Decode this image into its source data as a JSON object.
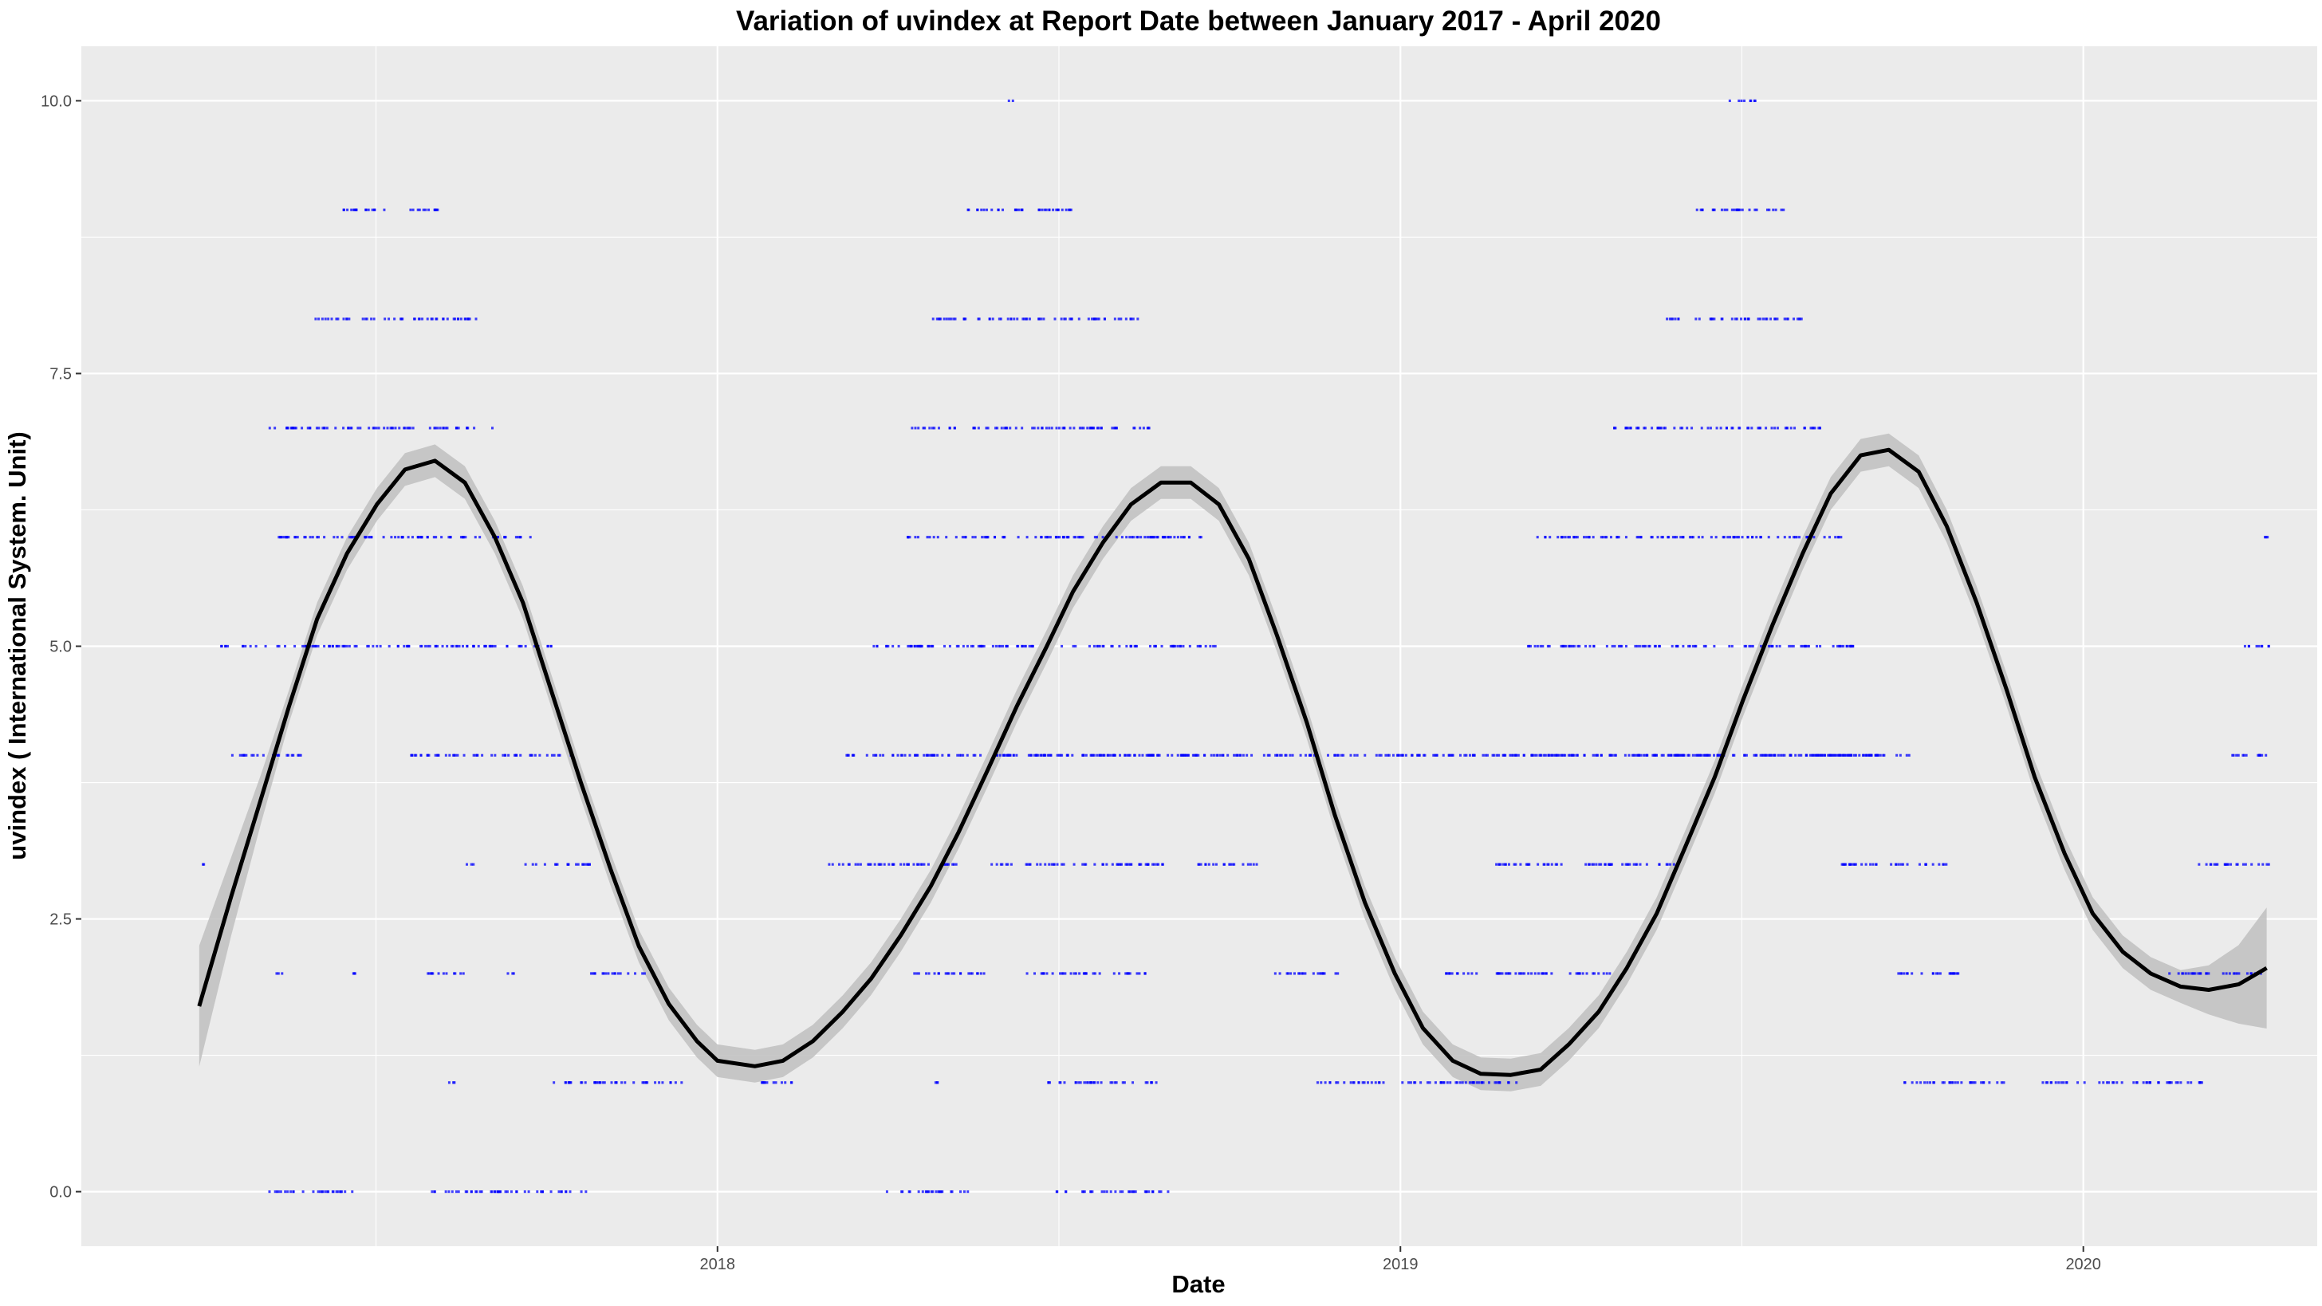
{
  "chart_data": {
    "type": "scatter",
    "title": "Variation of  uvindex  at Report Date between January 2017 - April 2020",
    "xlabel": "Date",
    "ylabel": "uvindex ( International System. Unit)",
    "x_ticks": [
      {
        "date": "2018-01-01",
        "label": "2018"
      },
      {
        "date": "2019-01-01",
        "label": "2019"
      },
      {
        "date": "2020-01-01",
        "label": "2020"
      }
    ],
    "y_ticks": [
      {
        "value": 0,
        "label": "0.0"
      },
      {
        "value": 2.5,
        "label": "2.5"
      },
      {
        "value": 5,
        "label": "5.0"
      },
      {
        "value": 7.5,
        "label": "7.5"
      },
      {
        "value": 10,
        "label": "10.0"
      }
    ],
    "xlim": [
      "2017-01-26",
      "2020-05-05"
    ],
    "ylim": [
      -0.5,
      10.5
    ],
    "grid": true,
    "legend": "none",
    "colors": {
      "panel_background": "#ebebeb",
      "grid": "#ffffff",
      "points": "#0000ff",
      "smooth_line": "#000000",
      "confidence_band": "#bfbfbf"
    },
    "series": [
      {
        "type": "smooth",
        "x": [
          "2017-03-30",
          "2017-04-16",
          "2017-05-02",
          "2017-05-17",
          "2017-06-01",
          "2017-06-17",
          "2017-07-03",
          "2017-07-18",
          "2017-08-03",
          "2017-08-19",
          "2017-09-04",
          "2017-09-19",
          "2017-10-04",
          "2017-10-20",
          "2017-11-05",
          "2017-11-20",
          "2017-12-06",
          "2017-12-21",
          "2018-01-01",
          "2018-01-21",
          "2018-02-05",
          "2018-02-21",
          "2018-03-09",
          "2018-03-24",
          "2018-04-09",
          "2018-04-25",
          "2018-05-10",
          "2018-05-25",
          "2018-06-10",
          "2018-06-26",
          "2018-07-10",
          "2018-07-26",
          "2018-08-10",
          "2018-08-26",
          "2018-09-11",
          "2018-09-26",
          "2018-10-12",
          "2018-10-27",
          "2018-11-12",
          "2018-11-27",
          "2018-12-13",
          "2018-12-29",
          "2019-01-13",
          "2019-01-29",
          "2019-02-13",
          "2019-03-01",
          "2019-03-17",
          "2019-04-01",
          "2019-04-17",
          "2019-05-02",
          "2019-05-18",
          "2019-06-02",
          "2019-06-18",
          "2019-07-03",
          "2019-07-19",
          "2019-08-04",
          "2019-08-19",
          "2019-09-04",
          "2019-09-19",
          "2019-10-05",
          "2019-10-20",
          "2019-11-05",
          "2019-11-21",
          "2019-12-06",
          "2019-12-22",
          "2020-01-06",
          "2020-01-22",
          "2020-02-06",
          "2020-02-22",
          "2020-03-08",
          "2020-03-24",
          "2020-04-08"
        ],
        "y": [
          1.7,
          2.7,
          3.6,
          4.45,
          5.25,
          5.85,
          6.3,
          6.62,
          6.7,
          6.5,
          6.0,
          5.4,
          4.6,
          3.75,
          2.95,
          2.25,
          1.72,
          1.38,
          1.2,
          1.15,
          1.2,
          1.38,
          1.65,
          1.95,
          2.35,
          2.8,
          3.3,
          3.85,
          4.45,
          5.0,
          5.5,
          5.95,
          6.3,
          6.5,
          6.5,
          6.3,
          5.8,
          5.1,
          4.3,
          3.45,
          2.65,
          2.0,
          1.5,
          1.2,
          1.08,
          1.07,
          1.12,
          1.35,
          1.65,
          2.05,
          2.55,
          3.15,
          3.8,
          4.5,
          5.2,
          5.85,
          6.4,
          6.75,
          6.8,
          6.6,
          6.1,
          5.4,
          4.6,
          3.8,
          3.1,
          2.55,
          2.2,
          2.0,
          1.88,
          1.85,
          1.9,
          2.05
        ],
        "band_half_width": 0.15
      },
      {
        "type": "points",
        "clusters": [
          {
            "y": 0,
            "ranges": [
              [
                "2017-05-01",
                "2017-06-20"
              ],
              [
                "2017-08-01",
                "2017-10-25"
              ],
              [
                "2018-04-01",
                "2018-05-15"
              ],
              [
                "2018-07-01",
                "2018-08-30"
              ]
            ]
          },
          {
            "y": 1,
            "ranges": [
              [
                "2017-08-10",
                "2017-08-15"
              ],
              [
                "2017-10-05",
                "2017-12-15"
              ],
              [
                "2018-01-20",
                "2018-02-10"
              ],
              [
                "2018-04-25",
                "2018-04-30"
              ],
              [
                "2018-06-25",
                "2018-08-25"
              ],
              [
                "2018-11-15",
                "2019-03-05"
              ],
              [
                "2019-09-25",
                "2019-11-20"
              ],
              [
                "2019-12-10",
                "2020-03-05"
              ]
            ]
          },
          {
            "y": 2,
            "ranges": [
              [
                "2017-05-10",
                "2017-05-15"
              ],
              [
                "2017-06-20",
                "2017-06-25"
              ],
              [
                "2017-07-30",
                "2017-08-20"
              ],
              [
                "2017-09-10",
                "2017-09-15"
              ],
              [
                "2017-10-25",
                "2017-11-25"
              ],
              [
                "2018-04-15",
                "2018-05-25"
              ],
              [
                "2018-06-15",
                "2018-08-20"
              ],
              [
                "2018-10-25",
                "2018-11-30"
              ],
              [
                "2019-01-25",
                "2019-04-25"
              ],
              [
                "2019-09-20",
                "2019-10-30"
              ],
              [
                "2020-02-15",
                "2020-04-05"
              ]
            ]
          },
          {
            "y": 3,
            "ranges": [
              [
                "2017-03-30",
                "2017-04-02"
              ],
              [
                "2017-08-20",
                "2017-08-25"
              ],
              [
                "2017-09-20",
                "2017-10-25"
              ],
              [
                "2018-02-25",
                "2018-05-10"
              ],
              [
                "2018-05-25",
                "2018-08-30"
              ],
              [
                "2018-09-15",
                "2018-10-20"
              ],
              [
                "2019-02-20",
                "2019-06-05"
              ],
              [
                "2019-08-25",
                "2019-10-25"
              ],
              [
                "2020-03-01",
                "2020-04-10"
              ]
            ]
          },
          {
            "y": 4,
            "ranges": [
              [
                "2017-04-15",
                "2017-05-25"
              ],
              [
                "2017-07-20",
                "2017-10-15"
              ],
              [
                "2018-03-10",
                "2019-09-30"
              ],
              [
                "2018-06-01",
                "2018-10-05"
              ],
              [
                "2019-03-10",
                "2019-05-30"
              ],
              [
                "2019-05-30",
                "2019-09-30"
              ],
              [
                "2020-03-15",
                "2020-04-10"
              ]
            ]
          },
          {
            "y": 5,
            "ranges": [
              [
                "2017-04-10",
                "2017-10-05"
              ],
              [
                "2018-03-25",
                "2018-09-25"
              ],
              [
                "2019-03-10",
                "2019-09-05"
              ],
              [
                "2020-03-25",
                "2020-04-10"
              ]
            ]
          },
          {
            "y": 6,
            "ranges": [
              [
                "2017-05-10",
                "2017-09-25"
              ],
              [
                "2018-04-10",
                "2018-09-20"
              ],
              [
                "2019-03-15",
                "2019-08-25"
              ],
              [
                "2020-04-05",
                "2020-04-10"
              ]
            ]
          },
          {
            "y": 7,
            "ranges": [
              [
                "2017-05-05",
                "2017-09-05"
              ],
              [
                "2018-04-15",
                "2018-08-20"
              ],
              [
                "2019-04-25",
                "2019-08-15"
              ]
            ]
          },
          {
            "y": 8,
            "ranges": [
              [
                "2017-05-30",
                "2017-08-25"
              ],
              [
                "2018-04-25",
                "2018-08-15"
              ],
              [
                "2019-05-20",
                "2019-08-05"
              ]
            ]
          },
          {
            "y": 9,
            "ranges": [
              [
                "2017-06-15",
                "2017-08-05"
              ],
              [
                "2018-05-10",
                "2018-07-10"
              ],
              [
                "2019-06-05",
                "2019-07-25"
              ]
            ]
          },
          {
            "y": 10,
            "ranges": [
              [
                "2018-06-05",
                "2018-06-08"
              ],
              [
                "2019-06-25",
                "2019-07-10"
              ]
            ]
          }
        ]
      }
    ]
  }
}
